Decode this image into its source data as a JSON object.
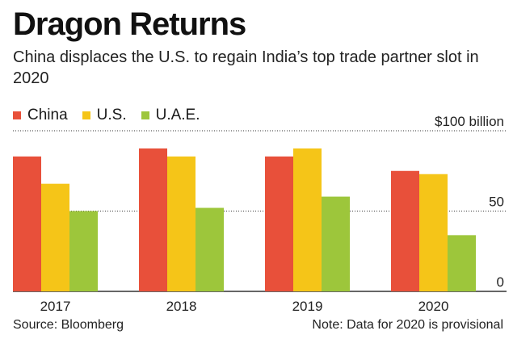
{
  "title": "Dragon Returns",
  "subtitle": "China displaces the U.S. to regain India’s top trade partner slot in 2020",
  "source": "Source: Bloomberg",
  "note": "Note: Data for 2020 is provisional",
  "colors": {
    "China": "#e8503a",
    "U.S.": "#f5c518",
    "U.A.E.": "#9dc63b",
    "grid": "#333333"
  },
  "chart_data": {
    "type": "bar",
    "categories": [
      "2017",
      "2018",
      "2019",
      "2020"
    ],
    "series": [
      {
        "name": "China",
        "values": [
          84,
          89,
          84,
          75
        ]
      },
      {
        "name": "U.S.",
        "values": [
          67,
          84,
          89,
          73
        ]
      },
      {
        "name": "U.A.E.",
        "values": [
          50,
          52,
          59,
          35
        ]
      }
    ],
    "ylim": [
      0,
      100
    ],
    "yticks": [
      {
        "value": 100,
        "label": "$100 billion"
      },
      {
        "value": 50,
        "label": "50"
      },
      {
        "value": 0,
        "label": "0"
      }
    ],
    "legend_position": "top-left",
    "grid": true
  }
}
